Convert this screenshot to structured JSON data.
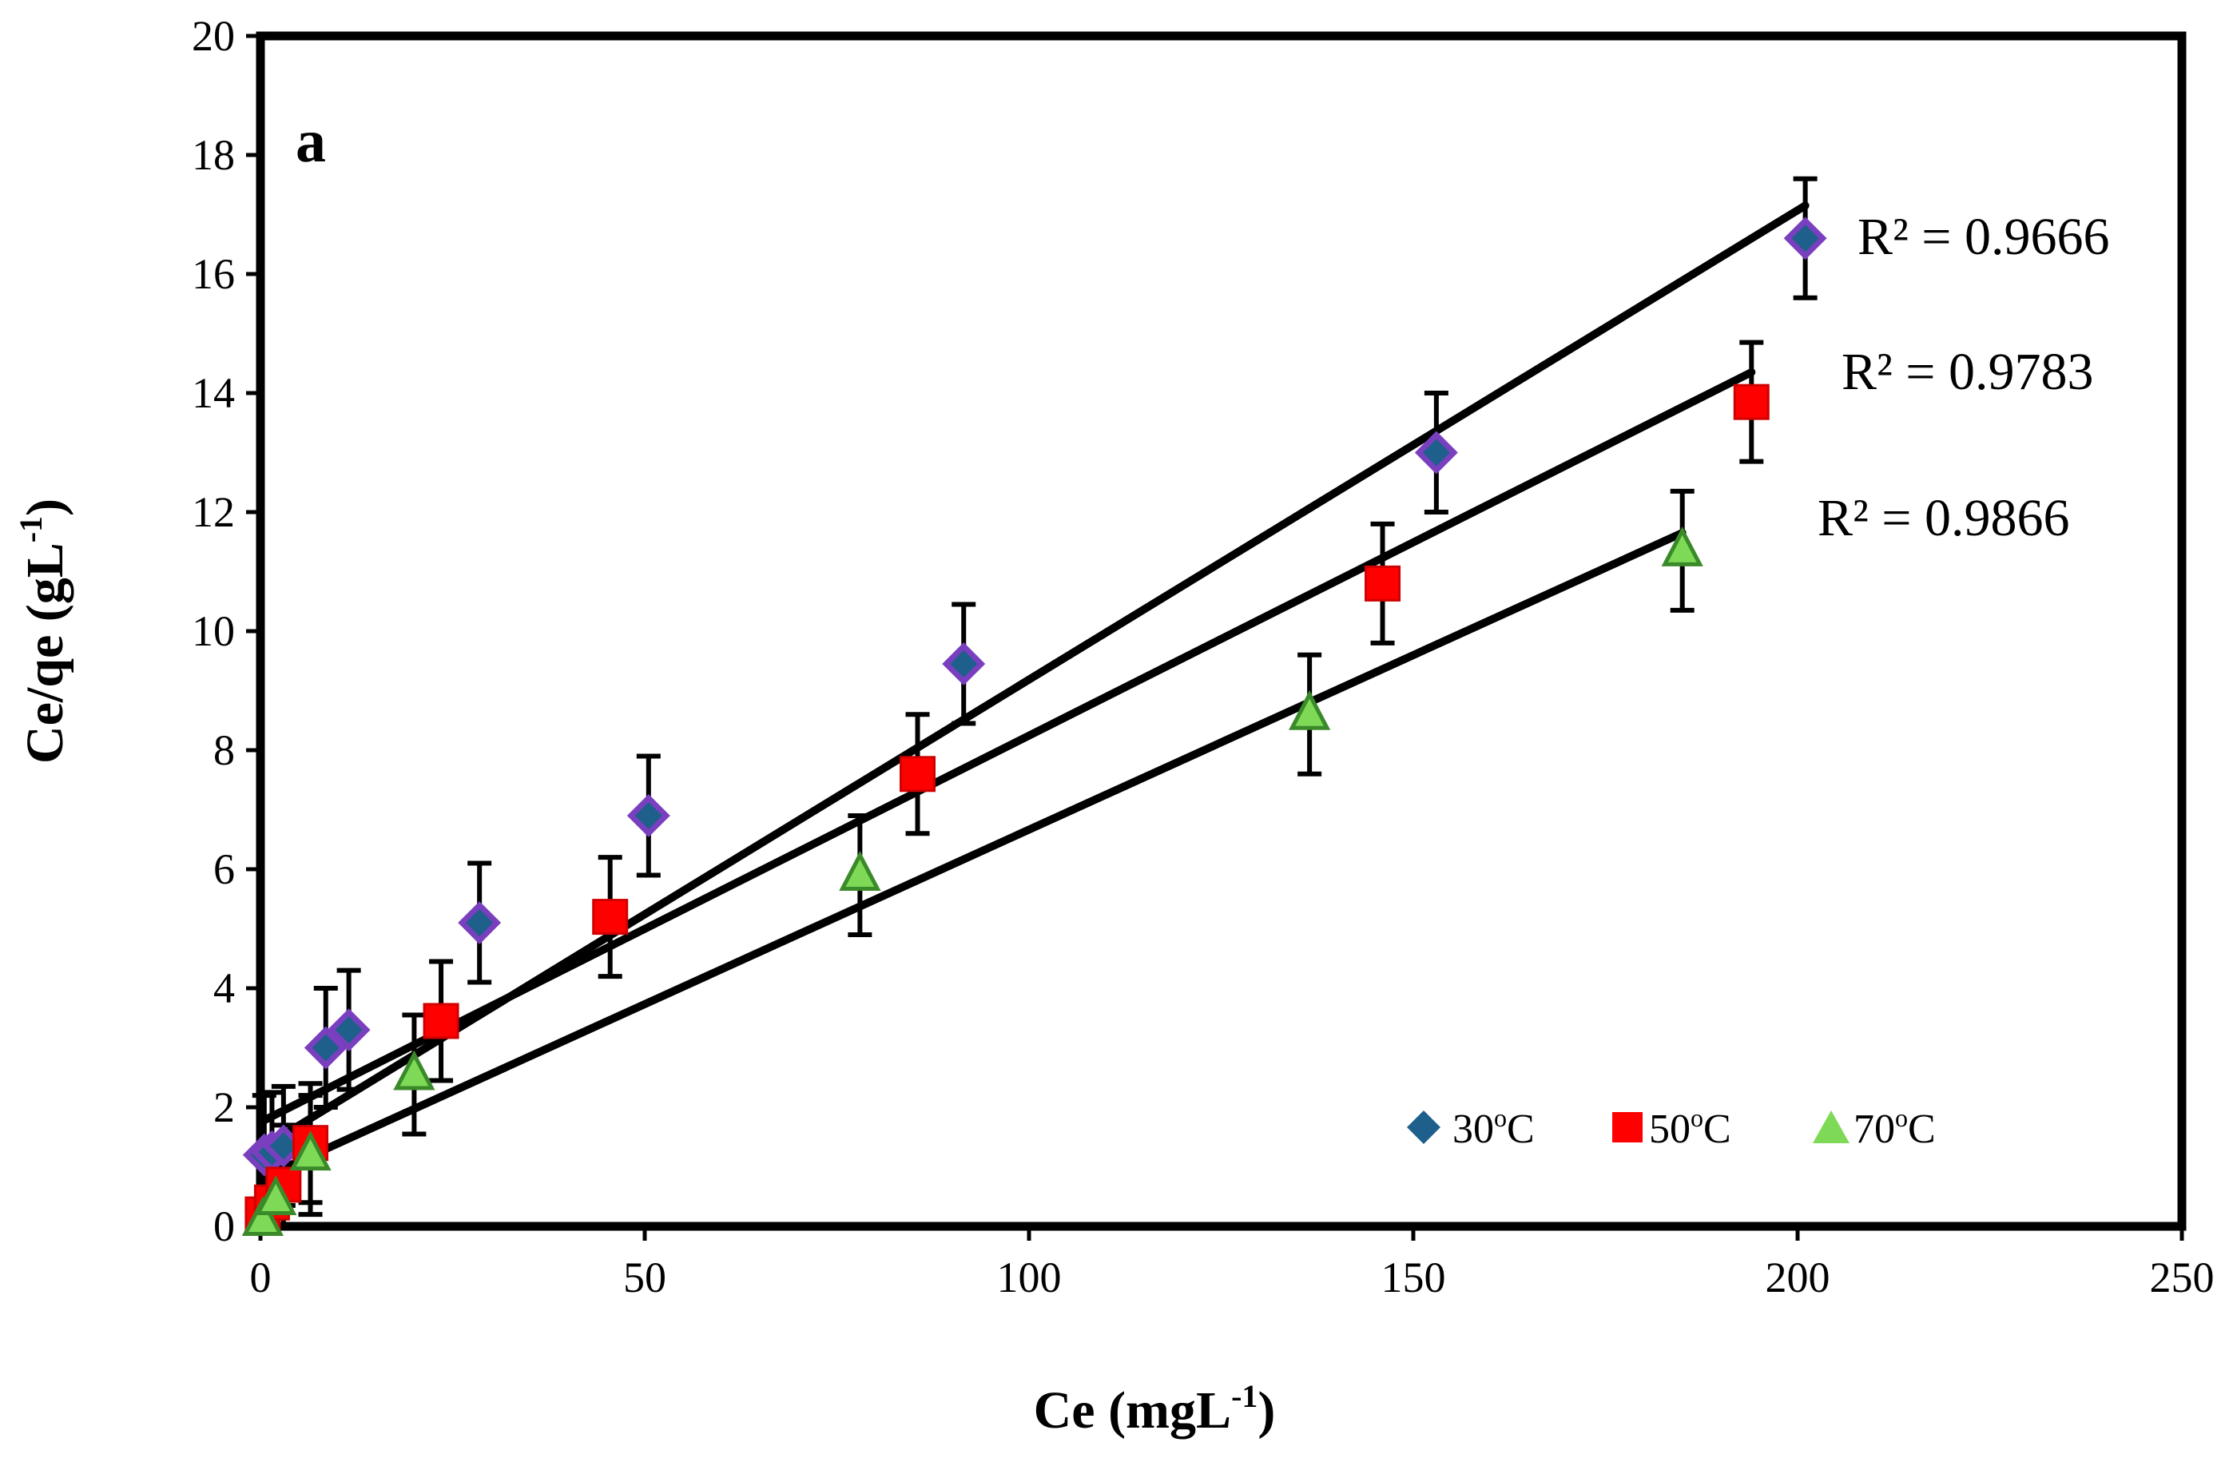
{
  "chart_data": {
    "type": "scatter",
    "panel_label": "a",
    "xlabel_main": "Ce (mgL",
    "xlabel_sup": "-1",
    "xlabel_end": ")",
    "ylabel_main": "Ce/qe (gL",
    "ylabel_sup": "-1",
    "ylabel_end": ")",
    "xlim": [
      0,
      250
    ],
    "ylim": [
      0,
      20
    ],
    "x_ticks": [
      0,
      50,
      100,
      150,
      200,
      250
    ],
    "y_ticks": [
      0,
      2,
      4,
      6,
      8,
      10,
      12,
      14,
      16,
      18,
      20
    ],
    "x_tick_labels": [
      "0",
      "50",
      "100",
      "150",
      "200",
      "250"
    ],
    "y_tick_labels": [
      "0",
      "2",
      "4",
      "6",
      "8",
      "10",
      "12",
      "14",
      "16",
      "18",
      "20"
    ],
    "error_bar": 1.0,
    "series": [
      {
        "name": "30oC",
        "legend_main": "30",
        "legend_sup": "o",
        "legend_end": "C",
        "marker": "diamond",
        "fill": "#1f5f8b",
        "stroke": "#7a3fbf",
        "x": [
          0.5,
          1.5,
          3,
          8.5,
          11.5,
          28.5,
          50.5,
          91.5,
          153,
          201
        ],
        "y": [
          1.2,
          1.25,
          1.35,
          3.0,
          3.3,
          5.1,
          6.9,
          9.45,
          13.0,
          16.6
        ],
        "fit": {
          "x0": 0,
          "y0": 1.3,
          "x1": 201,
          "y1": 17.15
        },
        "r2_text": "R² = 0.9666"
      },
      {
        "name": "50oC",
        "legend_main": "50",
        "legend_sup": "o",
        "legend_end": "C",
        "marker": "square",
        "fill": "#ff0000",
        "stroke": "#d00000",
        "x": [
          0.3,
          1.5,
          3,
          6.5,
          23.5,
          45.5,
          85.5,
          146,
          194
        ],
        "y": [
          0.2,
          0.4,
          0.7,
          1.4,
          3.45,
          5.2,
          7.6,
          10.8,
          13.85
        ],
        "fit": {
          "x0": 0,
          "y0": 1.75,
          "x1": 194,
          "y1": 14.35
        },
        "r2_text": "R² = 0.9783"
      },
      {
        "name": "70oC",
        "legend_main": "70",
        "legend_sup": "o",
        "legend_end": "C",
        "marker": "triangle",
        "fill": "#7ed957",
        "stroke": "#3b8a2a",
        "x": [
          0.3,
          2,
          6.5,
          20,
          78,
          136.5,
          185
        ],
        "y": [
          0.1,
          0.45,
          1.2,
          2.55,
          5.9,
          8.6,
          11.35
        ],
        "fit": {
          "x0": 0,
          "y0": 0.8,
          "x1": 185,
          "y1": 11.65
        },
        "r2_text": "R² = 0.9866"
      }
    ]
  }
}
